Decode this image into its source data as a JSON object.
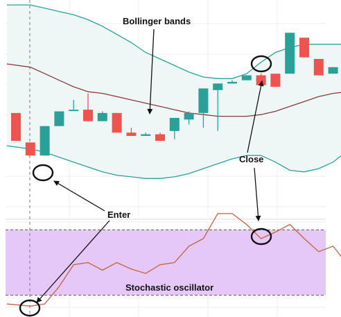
{
  "chart_data": {
    "type": "candlestick",
    "annotations": {
      "bollinger": "Bollinger bands",
      "enter": "Enter",
      "close": "Close",
      "stochastic": "Stochastic oscillator"
    },
    "colors": {
      "up": "#2aa198",
      "down": "#ef5350",
      "band": "#2aa198",
      "band_fill": "#eef7f6",
      "middle": "#8b3a3a",
      "stoch_line": "#c0623f",
      "stoch_zone": "#e6c8f8",
      "marker": "#111111"
    },
    "price_panel": {
      "ylim": [
        0,
        100
      ],
      "candles": [
        {
          "o": 42,
          "h": 42,
          "l": 25,
          "c": 25
        },
        {
          "o": 24,
          "h": 24,
          "l": 16,
          "c": 16
        },
        {
          "o": 16,
          "h": 34,
          "l": 16,
          "c": 34
        },
        {
          "o": 34,
          "h": 43,
          "l": 34,
          "c": 43
        },
        {
          "o": 44,
          "h": 50,
          "l": 44,
          "c": 44
        },
        {
          "o": 44,
          "h": 54,
          "l": 37,
          "c": 37
        },
        {
          "o": 37,
          "h": 43,
          "l": 37,
          "c": 42
        },
        {
          "o": 42,
          "h": 42,
          "l": 30,
          "c": 30
        },
        {
          "o": 30,
          "h": 33,
          "l": 28,
          "c": 28
        },
        {
          "o": 28,
          "h": 30,
          "l": 28,
          "c": 29
        },
        {
          "o": 29,
          "h": 30,
          "l": 25,
          "c": 25
        },
        {
          "o": 31,
          "h": 39,
          "l": 26,
          "c": 39
        },
        {
          "o": 38,
          "h": 43,
          "l": 35,
          "c": 42
        },
        {
          "o": 42,
          "h": 57,
          "l": 33,
          "c": 57
        },
        {
          "o": 56,
          "h": 60,
          "l": 31,
          "c": 60
        },
        {
          "o": 60,
          "h": 62,
          "l": 60,
          "c": 61
        },
        {
          "o": 62,
          "h": 65,
          "l": 62,
          "c": 65
        },
        {
          "o": 65,
          "h": 66,
          "l": 59,
          "c": 59
        },
        {
          "o": 66,
          "h": 66,
          "l": 58,
          "c": 58
        },
        {
          "o": 66,
          "h": 91,
          "l": 66,
          "c": 91
        },
        {
          "o": 88,
          "h": 88,
          "l": 76,
          "c": 76
        },
        {
          "o": 75,
          "h": 75,
          "l": 65,
          "c": 65
        },
        {
          "o": 66,
          "h": 70,
          "l": 66,
          "c": 70
        },
        {
          "o": 68,
          "h": 68,
          "l": 54,
          "c": 54
        }
      ],
      "upper_band": [
        108,
        108,
        106,
        104,
        102,
        99,
        95,
        90,
        85,
        79,
        75,
        71,
        67,
        64,
        63,
        63,
        66,
        73,
        79,
        82,
        84,
        84,
        84,
        84
      ],
      "middle_band": [
        72,
        70,
        66,
        62,
        58,
        55,
        54,
        52,
        50,
        48,
        46,
        44,
        42,
        41,
        40,
        40,
        40,
        41,
        43,
        46,
        49,
        52,
        54,
        55
      ],
      "lower_band": [
        22,
        20,
        18,
        15,
        12,
        9,
        6,
        4,
        3,
        2,
        2,
        3,
        5,
        8,
        11,
        14,
        16,
        16,
        12,
        7,
        6,
        8,
        12,
        19
      ]
    },
    "oscillator_panel": {
      "ylim": [
        0,
        100
      ],
      "overbought": 80,
      "oversold": 20,
      "k_line": [
        12,
        10,
        12,
        28,
        48,
        50,
        43,
        50,
        44,
        40,
        48,
        50,
        65,
        72,
        95,
        95,
        85,
        72,
        78,
        85,
        72,
        60,
        65,
        48
      ]
    }
  }
}
